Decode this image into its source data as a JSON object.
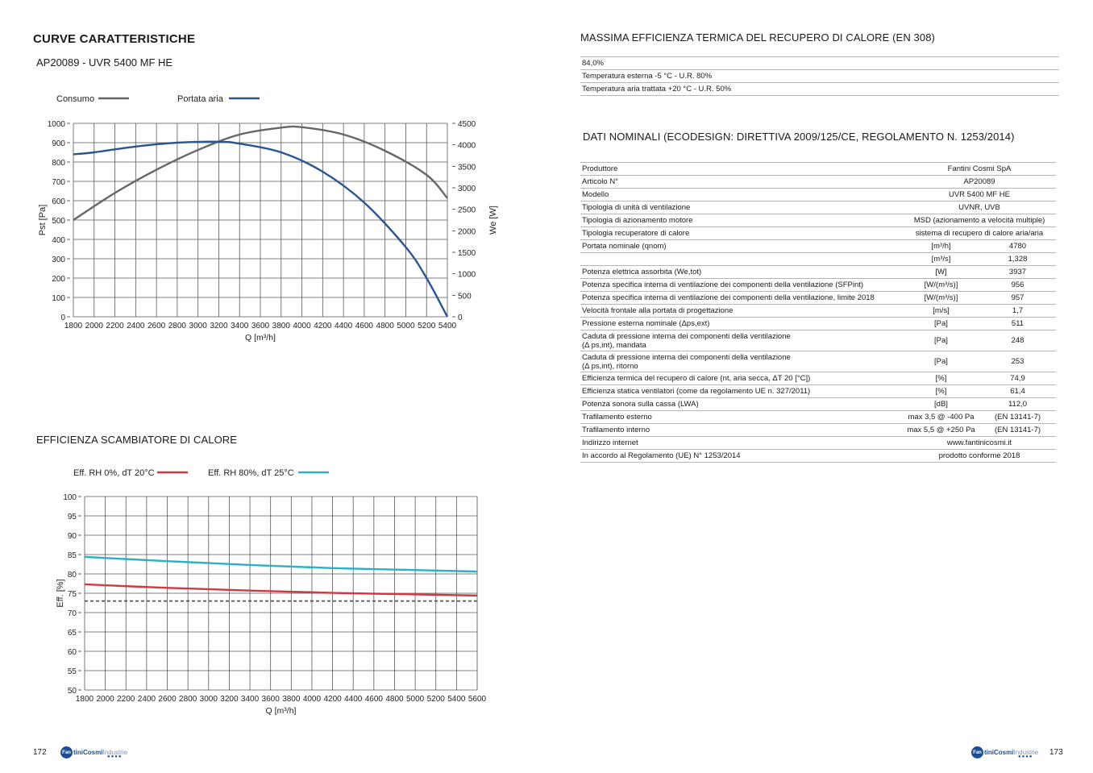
{
  "left": {
    "title": "CURVE CARATTERISTICHE",
    "subtitle": "AP20089 - UVR 5400 MF HE",
    "chart2_title": "EFFICIENZA SCAMBIATORE DI CALORE",
    "page_number": "172"
  },
  "right": {
    "section1_title": "MASSIMA EFFICIENZA TERMICA DEL RECUPERO DI CALORE (EN 308)",
    "section1_rows": [
      "84,0%",
      "Temperatura esterna -5 °C - U.R. 80%",
      "Temperatura aria trattata +20 °C - U.R. 50%"
    ],
    "section2_title": "DATI NOMINALI (ECODESIGN: DIRETTIVA 2009/125/CE, REGOLAMENTO N. 1253/2014)",
    "page_number": "173"
  },
  "logo": {
    "fan": "Fan",
    "brand_a": "tiniCosmi",
    "brand_b": "Industrie",
    "dots": "●●●●"
  },
  "table": {
    "rows": [
      {
        "label": "Produttore",
        "value": "Fantini Cosmi SpA"
      },
      {
        "label": "Articolo N°",
        "value": "AP20089"
      },
      {
        "label": "Modello",
        "value": "UVR 5400 MF HE"
      },
      {
        "label": "Tipologia di unità di ventilazione",
        "value": "UVNR, UVB"
      },
      {
        "label": "Tipologia di azionamento motore",
        "value": "MSD (azionamento a velocità multiple)"
      },
      {
        "label": "Tipologia recuperatore di calore",
        "value": "sistema di recupero di calore aria/aria"
      },
      {
        "label": "Portata nominale (qnom)",
        "unit": "[m³/h]",
        "value": "4780"
      },
      {
        "label": "",
        "unit": "[m³/s]",
        "value": "1,328"
      },
      {
        "label": "Potenza elettrica assorbita (We,tot)",
        "unit": "[W]",
        "value": "3937"
      },
      {
        "label": "Potenza specifica interna di ventilazione dei componenti della ventilazione (SFPint)",
        "unit": "[W/(m³/s)]",
        "value": "956"
      },
      {
        "label": "Potenza specifica interna di ventilazione dei componenti della ventilazione, limite 2018",
        "unit": "[W/(m³/s)]",
        "value": "957"
      },
      {
        "label": "Velocità frontale alla portata di progettazione",
        "unit": "[m/s]",
        "value": "1,7"
      },
      {
        "label": "Pressione esterna nominale (Δps,ext)",
        "unit": "[Pa]",
        "value": "511"
      },
      {
        "label": "Caduta di pressione interna dei componenti della ventilazione",
        "label2": "(Δ ps,int), mandata",
        "unit": "[Pa]",
        "value": "248"
      },
      {
        "label": "Caduta di pressione interna dei componenti della ventilazione",
        "label2": "(Δ ps,int), ritorno",
        "unit": "[Pa]",
        "value": "253"
      },
      {
        "label": "Efficienza termica del recupero di calore (nt, aria secca, ΔT 20 [°C])",
        "unit": "[%]",
        "value": "74,9"
      },
      {
        "label": "Efficienza statica ventilatori (come da regolamento UE n. 327/2011)",
        "unit": "[%]",
        "value": "61,4"
      },
      {
        "label": "Potenza sonora sulla cassa (LWA)",
        "unit": "[dB]",
        "value": "112,0"
      },
      {
        "label": "Trafilamento esterno",
        "unit": "max 3,5 @ -400 Pa",
        "value": "(EN 13141-7)"
      },
      {
        "label": "Trafilamento interno",
        "unit": "max 5,5 @ +250 Pa",
        "value": "(EN 13141-7)"
      },
      {
        "label": "Indirizzo internet",
        "value": "www.fantinicosmi.it"
      },
      {
        "label": "In accordo al Regolamento (UE) N° 1253/2014",
        "value": "prodotto conforme 2018"
      }
    ]
  },
  "chart_data": [
    {
      "type": "line",
      "xlabel": "Q [m³/h]",
      "ylabel": "Pst [Pa]",
      "y2label": "We [W]",
      "xlim": [
        1800,
        5400
      ],
      "ylim": [
        0,
        1000
      ],
      "y2lim": [
        0,
        4500
      ],
      "xticks": [
        "1800",
        "2000",
        "2200",
        "2400",
        "2600",
        "2800",
        "3000",
        "3200",
        "3400",
        "3600",
        "3800",
        "4000",
        "4200",
        "4400",
        "4600",
        "4800",
        "5000",
        "5200",
        "5400"
      ],
      "yticks": [
        "0",
        "100",
        "200",
        "300",
        "400",
        "500",
        "600",
        "700",
        "800",
        "900",
        "1000"
      ],
      "y2ticks": [
        "0",
        "500",
        "1000",
        "1500",
        "2000",
        "2500",
        "3000",
        "3500",
        "4000",
        "4500"
      ],
      "grid": true,
      "legend_position": "top-left",
      "series": [
        {
          "name": "Consumo",
          "axis": "right",
          "color": "#666666",
          "x": [
            1800,
            2200,
            2600,
            3000,
            3400,
            3800,
            4000,
            4400,
            4800,
            5200,
            5400
          ],
          "y": [
            2250,
            2880,
            3420,
            3880,
            4240,
            4400,
            4410,
            4240,
            3860,
            3300,
            2760
          ]
        },
        {
          "name": "Portata aria",
          "axis": "left",
          "color": "#2b5590",
          "x": [
            1800,
            2000,
            2400,
            2800,
            3200,
            3400,
            3800,
            4200,
            4600,
            5000,
            5200,
            5400
          ],
          "y": [
            840,
            850,
            880,
            900,
            905,
            895,
            850,
            750,
            590,
            360,
            200,
            0
          ]
        }
      ]
    },
    {
      "type": "line",
      "xlabel": "Q [m³/h]",
      "ylabel": "Eff. [%]",
      "xlim": [
        1800,
        5600
      ],
      "ylim": [
        50,
        100
      ],
      "xticks": [
        "1800",
        "2000",
        "2200",
        "2400",
        "2600",
        "2800",
        "3000",
        "3200",
        "3400",
        "3600",
        "3800",
        "4000",
        "4200",
        "4400",
        "4600",
        "4800",
        "5000",
        "5200",
        "5400",
        "5600"
      ],
      "yticks": [
        "50",
        "55",
        "60",
        "65",
        "70",
        "75",
        "80",
        "85",
        "90",
        "95",
        "100"
      ],
      "grid": true,
      "legend_position": "top-left",
      "series": [
        {
          "name": "Eff. RH 0%, dT 20°C",
          "color": "#d0393f",
          "x": [
            1800,
            2600,
            3400,
            4200,
            5000,
            5600
          ],
          "y": [
            77.3,
            76.4,
            75.7,
            75.1,
            74.7,
            74.4
          ]
        },
        {
          "name": "Eff. RH 80%, dT 25°C",
          "color": "#2bb0c6",
          "x": [
            1800,
            2600,
            3400,
            4200,
            5000,
            5600
          ],
          "y": [
            84.4,
            83.3,
            82.3,
            81.5,
            81.0,
            80.6
          ]
        },
        {
          "color": "#555555",
          "dashed": true,
          "x": [
            1800,
            5600
          ],
          "y": [
            73,
            73
          ]
        }
      ]
    }
  ]
}
